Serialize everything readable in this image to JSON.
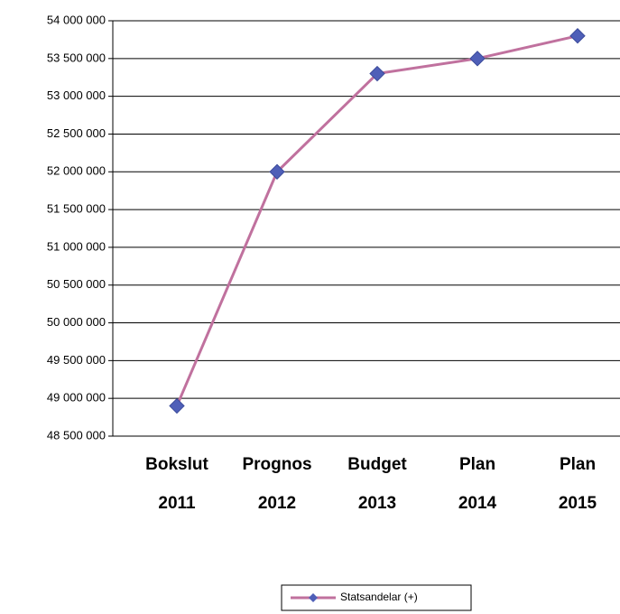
{
  "chart_data": {
    "type": "line",
    "categories": [
      [
        "Bokslut",
        "2011"
      ],
      [
        "Prognos",
        "2012"
      ],
      [
        "Budget",
        "2013"
      ],
      [
        "Plan",
        "2014"
      ],
      [
        "Plan",
        "2015"
      ]
    ],
    "series": [
      {
        "name": "Statsandelar (+)",
        "color": "#c0719e",
        "marker_color": "#4f5fb8",
        "values": [
          48900000,
          52000000,
          53300000,
          53500000,
          53800000
        ]
      }
    ],
    "ylim": [
      48500000,
      54000000
    ],
    "yticks": [
      {
        "value": 48500000,
        "label": "48 500 000"
      },
      {
        "value": 49000000,
        "label": "49 000 000"
      },
      {
        "value": 49500000,
        "label": "49 500 000"
      },
      {
        "value": 50000000,
        "label": "50 000 000"
      },
      {
        "value": 50500000,
        "label": "50 500 000"
      },
      {
        "value": 51000000,
        "label": "51 000 000"
      },
      {
        "value": 51500000,
        "label": "51 500 000"
      },
      {
        "value": 52000000,
        "label": "52 000 000"
      },
      {
        "value": 52500000,
        "label": "52 500 000"
      },
      {
        "value": 53000000,
        "label": "53 000 000"
      },
      {
        "value": 53500000,
        "label": "53 500 000"
      },
      {
        "value": 54000000,
        "label": "54 000 000"
      }
    ],
    "grid": true,
    "legend": "bottom"
  }
}
